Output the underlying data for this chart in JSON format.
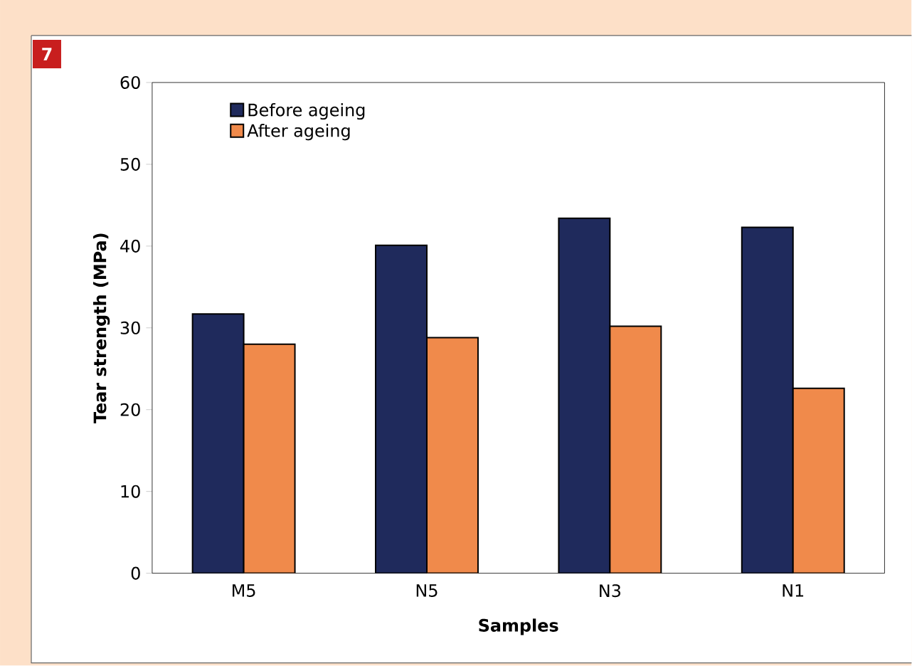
{
  "chart_data": {
    "type": "bar",
    "annotations": [
      "7"
    ],
    "xlabel": "Samples",
    "ylabel": "Tear strength (MPa)",
    "categories": [
      "M5",
      "N5",
      "N3",
      "N1"
    ],
    "series": [
      {
        "name": "Before ageing",
        "color": "#1f2a5c",
        "values": [
          31.7,
          40.1,
          43.4,
          42.3
        ]
      },
      {
        "name": "After ageing",
        "color": "#f08a4b",
        "values": [
          28.0,
          28.8,
          30.2,
          22.6
        ]
      }
    ],
    "ylim": [
      0,
      60
    ],
    "yticks": [
      0,
      10,
      20,
      30,
      40,
      50,
      60
    ],
    "grid": false,
    "legend": "top left"
  }
}
